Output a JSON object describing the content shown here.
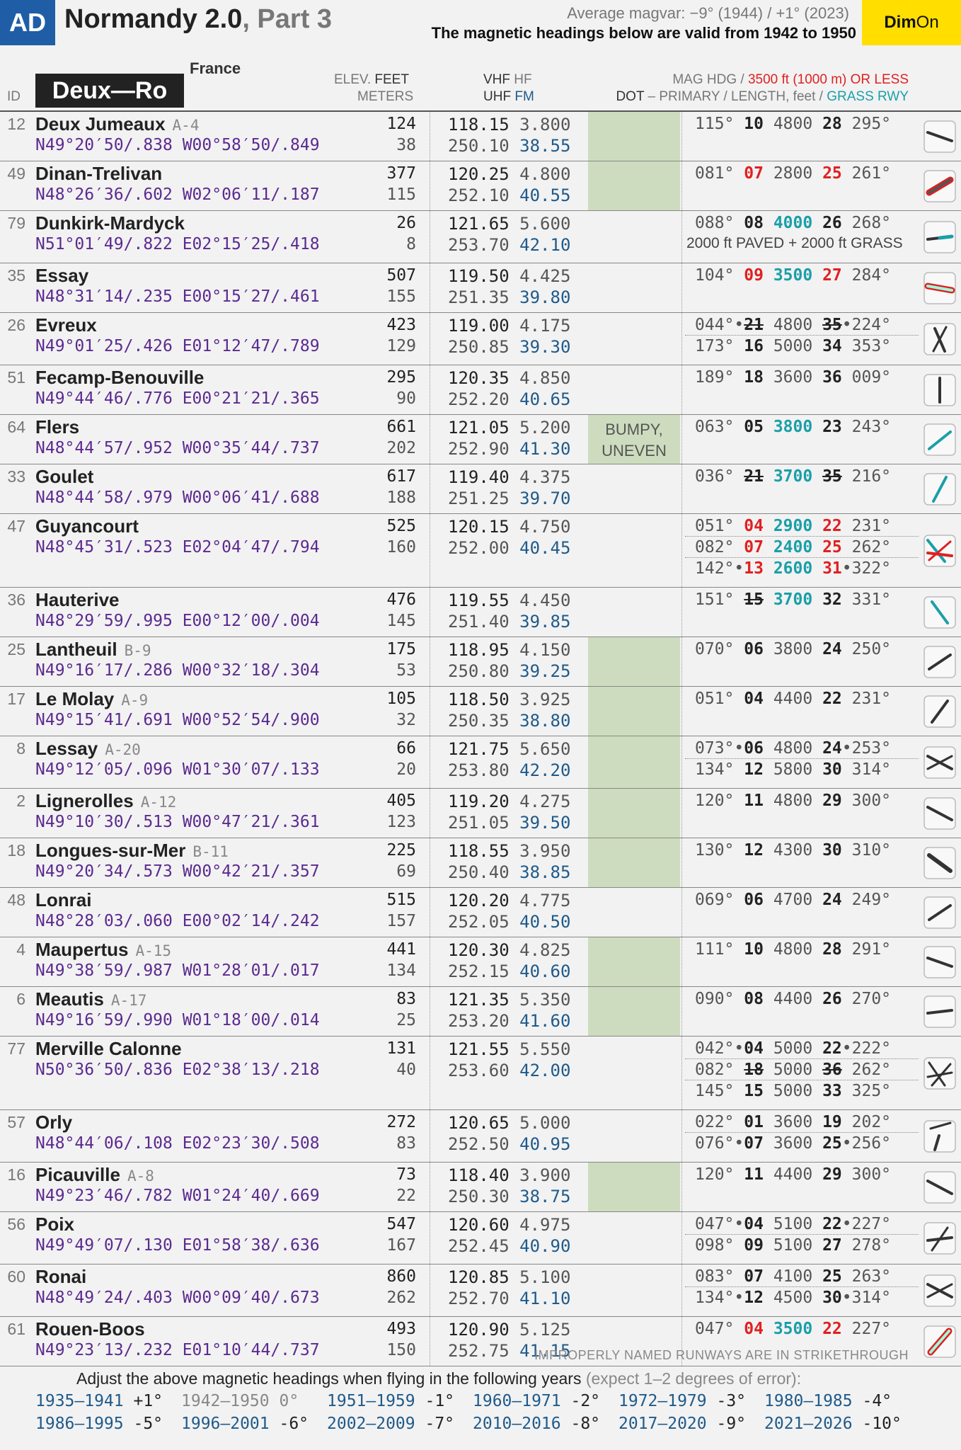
{
  "header": {
    "badge": "AD",
    "title": "Normandy 2.0",
    "part": ", Part 3",
    "magvar": "Average magvar: −9° (1944) / +1° (2023)",
    "validity": "The magnetic headings below are valid from 1942 to 1950",
    "dim_a": "Dim",
    "dim_b": "On"
  },
  "columns": {
    "id": "ID",
    "country": "France",
    "range": "Deux—Ro",
    "elev": "ELEV.",
    "feet": "FEET",
    "meters": "METERS",
    "vhf": "VHF",
    "hf": "HF",
    "uhf": "UHF",
    "fm": "FM",
    "mag1": "MAG HDG /",
    "mag2": "3500 ft (1000 m) OR LESS",
    "dot": "DOT",
    "dot2": " – PRIMARY / LENGTH, feet /",
    "grass": "GRASS RWY"
  },
  "rows": [
    {
      "id": "12",
      "name": "Deux Jumeaux",
      "code": "A-4",
      "coord": "N49°20′50/.838 W00°58′50/.849",
      "elev_ft": "124",
      "elev_m": "38",
      "vhf": "118.15",
      "hf": "3.800",
      "uhf": "250.10",
      "fm": "38.55",
      "green": true,
      "note": "",
      "rwys": [
        [
          "115°",
          [
            "10",
            "n"
          ],
          [
            "4800",
            ""
          ],
          [
            "28",
            "n"
          ],
          "295°"
        ]
      ],
      "extra": "",
      "icon": "dash"
    },
    {
      "id": "49",
      "name": "Dinan-Trelivan",
      "code": "",
      "coord": "N48°26′36/.602 W02°06′11/.187",
      "elev_ft": "377",
      "elev_m": "115",
      "vhf": "120.25",
      "hf": "4.800",
      "uhf": "252.10",
      "fm": "40.55",
      "green": true,
      "note": "",
      "rwys": [
        [
          "081°",
          [
            "07",
            "red"
          ],
          [
            "2800",
            ""
          ],
          [
            "25",
            "red"
          ],
          "261°"
        ]
      ],
      "extra": "",
      "icon": "redpill"
    },
    {
      "id": "79",
      "name": "Dunkirk-Mardyck",
      "code": "",
      "coord": "N51°01′49/.822 E02°15′25/.418",
      "elev_ft": "26",
      "elev_m": "8",
      "vhf": "121.65",
      "hf": "5.600",
      "uhf": "253.70",
      "fm": "42.10",
      "green": false,
      "note": "",
      "rwys": [
        [
          "088°",
          [
            "08",
            "n"
          ],
          [
            "4000",
            "cyan"
          ],
          [
            "26",
            "n"
          ],
          "268°"
        ]
      ],
      "extra": "2000 ft PAVED + 2000 ft GRASS",
      "icon": "dashcyan"
    },
    {
      "id": "35",
      "name": "Essay",
      "code": "",
      "coord": "N48°31′14/.235 E00°15′27/.461",
      "elev_ft": "507",
      "elev_m": "155",
      "vhf": "119.50",
      "hf": "4.425",
      "uhf": "251.35",
      "fm": "39.80",
      "green": false,
      "note": "",
      "rwys": [
        [
          "104°",
          [
            "09",
            "red"
          ],
          [
            "3500",
            "cyan"
          ],
          [
            "27",
            "red"
          ],
          "284°"
        ]
      ],
      "extra": "",
      "icon": "pinkpill"
    },
    {
      "id": "26",
      "name": "Evreux",
      "code": "",
      "coord": "N49°01′25/.426 E01°12′47/.789",
      "elev_ft": "423",
      "elev_m": "129",
      "vhf": "119.00",
      "hf": "4.175",
      "uhf": "250.85",
      "fm": "39.30",
      "green": false,
      "note": "",
      "rwys": [
        [
          "044°•",
          [
            "21",
            "strike"
          ],
          [
            "4800",
            ""
          ],
          [
            "35",
            "strike"
          ],
          "•224°"
        ],
        [
          "173°",
          [
            "16",
            "n"
          ],
          [
            "5000",
            ""
          ],
          [
            "34",
            "n"
          ],
          "353°"
        ]
      ],
      "extra": "",
      "icon": "cross1"
    },
    {
      "id": "51",
      "name": "Fecamp-Benouville",
      "code": "",
      "coord": "N49°44′46/.776 E00°21′21/.365",
      "elev_ft": "295",
      "elev_m": "90",
      "vhf": "120.35",
      "hf": "4.850",
      "uhf": "252.20",
      "fm": "40.65",
      "green": false,
      "note": "",
      "rwys": [
        [
          "189°",
          [
            "18",
            "n"
          ],
          [
            "3600",
            ""
          ],
          [
            "36",
            "n"
          ],
          "009°"
        ]
      ],
      "extra": "",
      "icon": "vert"
    },
    {
      "id": "64",
      "name": "Flers",
      "code": "",
      "coord": "N48°44′57/.952 W00°35′44/.737",
      "elev_ft": "661",
      "elev_m": "202",
      "vhf": "121.05",
      "hf": "5.200",
      "uhf": "252.90",
      "fm": "41.30",
      "green": true,
      "note": "BUMPY, UNEVEN",
      "rwys": [
        [
          "063°",
          [
            "05",
            "n"
          ],
          [
            "3800",
            "cyan"
          ],
          [
            "23",
            "n"
          ],
          "243°"
        ]
      ],
      "extra": "",
      "icon": "cyan60"
    },
    {
      "id": "33",
      "name": "Goulet",
      "code": "",
      "coord": "N48°44′58/.979 W00°06′41/.688",
      "elev_ft": "617",
      "elev_m": "188",
      "vhf": "119.40",
      "hf": "4.375",
      "uhf": "251.25",
      "fm": "39.70",
      "green": false,
      "note": "",
      "rwys": [
        [
          "036°",
          [
            "21",
            "strike"
          ],
          [
            "3700",
            "cyan"
          ],
          [
            "35",
            "strike"
          ],
          "216°"
        ]
      ],
      "extra": "",
      "icon": "cyan30"
    },
    {
      "id": "47",
      "name": "Guyancourt",
      "code": "",
      "coord": "N48°45′31/.523 E02°04′47/.794",
      "elev_ft": "525",
      "elev_m": "160",
      "vhf": "120.15",
      "hf": "4.750",
      "uhf": "252.00",
      "fm": "40.45",
      "green": false,
      "note": "",
      "rwys": [
        [
          "051°",
          [
            "04",
            "red"
          ],
          [
            "2900",
            "cyan"
          ],
          [
            "22",
            "red"
          ],
          "231°"
        ],
        [
          "082°",
          [
            "07",
            "red"
          ],
          [
            "2400",
            "cyan"
          ],
          [
            "25",
            "red"
          ],
          "262°"
        ],
        [
          "142°•",
          [
            "13",
            "red"
          ],
          [
            "2600",
            "cyan"
          ],
          [
            "31",
            "red"
          ],
          "•322°"
        ]
      ],
      "extra": "",
      "icon": "tri"
    },
    {
      "id": "36",
      "name": "Hauterive",
      "code": "",
      "coord": "N48°29′59/.995 E00°12′00/.004",
      "elev_ft": "476",
      "elev_m": "145",
      "vhf": "119.55",
      "hf": "4.450",
      "uhf": "251.40",
      "fm": "39.85",
      "green": false,
      "note": "",
      "rwys": [
        [
          "151°",
          [
            "15",
            "strike"
          ],
          [
            "3700",
            "cyan"
          ],
          [
            "32",
            "n"
          ],
          "331°"
        ]
      ],
      "extra": "",
      "icon": "cyan150"
    },
    {
      "id": "25",
      "name": "Lantheuil",
      "code": "B-9",
      "coord": "N49°16′17/.286 W00°32′18/.304",
      "elev_ft": "175",
      "elev_m": "53",
      "vhf": "118.95",
      "hf": "4.150",
      "uhf": "250.80",
      "fm": "39.25",
      "green": true,
      "note": "",
      "rwys": [
        [
          "070°",
          [
            "06",
            "n"
          ],
          [
            "3800",
            ""
          ],
          [
            "24",
            "n"
          ],
          "250°"
        ]
      ],
      "extra": "",
      "icon": "d70"
    },
    {
      "id": "17",
      "name": "Le Molay",
      "code": "A-9",
      "coord": "N49°15′41/.691 W00°52′54/.900",
      "elev_ft": "105",
      "elev_m": "32",
      "vhf": "118.50",
      "hf": "3.925",
      "uhf": "250.35",
      "fm": "38.80",
      "green": true,
      "note": "",
      "rwys": [
        [
          "051°",
          [
            "04",
            "n"
          ],
          [
            "4400",
            ""
          ],
          [
            "22",
            "n"
          ],
          "231°"
        ]
      ],
      "extra": "",
      "icon": "d50"
    },
    {
      "id": "8",
      "name": "Lessay",
      "code": "A-20",
      "coord": "N49°12′05/.096 W01°30′07/.133",
      "elev_ft": "66",
      "elev_m": "20",
      "vhf": "121.75",
      "hf": "5.650",
      "uhf": "253.80",
      "fm": "42.20",
      "green": true,
      "note": "",
      "rwys": [
        [
          "073°•",
          [
            "06",
            "n"
          ],
          [
            "4800",
            ""
          ],
          [
            "24",
            "n"
          ],
          "•253°"
        ],
        [
          "134°",
          [
            "12",
            "n"
          ],
          [
            "5800",
            ""
          ],
          [
            "30",
            "n"
          ],
          "314°"
        ]
      ],
      "extra": "",
      "icon": "x"
    },
    {
      "id": "2",
      "name": "Lignerolles",
      "code": "A-12",
      "coord": "N49°10′30/.513 W00°47′21/.361",
      "elev_ft": "405",
      "elev_m": "123",
      "vhf": "119.20",
      "hf": "4.275",
      "uhf": "251.05",
      "fm": "39.50",
      "green": true,
      "note": "",
      "rwys": [
        [
          "120°",
          [
            "11",
            "n"
          ],
          [
            "4800",
            ""
          ],
          [
            "29",
            "n"
          ],
          "300°"
        ]
      ],
      "extra": "",
      "icon": "d120"
    },
    {
      "id": "18",
      "name": "Longues-sur-Mer",
      "code": "B-11",
      "coord": "N49°20′34/.573 W00°42′21/.357",
      "elev_ft": "225",
      "elev_m": "69",
      "vhf": "118.55",
      "hf": "3.950",
      "uhf": "250.40",
      "fm": "38.85",
      "green": true,
      "note": "",
      "rwys": [
        [
          "130°",
          [
            "12",
            "n"
          ],
          [
            "4300",
            ""
          ],
          [
            "30",
            "n"
          ],
          "310°"
        ]
      ],
      "extra": "",
      "icon": "d130"
    },
    {
      "id": "48",
      "name": "Lonrai",
      "code": "",
      "coord": "N48°28′03/.060 E00°02′14/.242",
      "elev_ft": "515",
      "elev_m": "157",
      "vhf": "120.20",
      "hf": "4.775",
      "uhf": "252.05",
      "fm": "40.50",
      "green": false,
      "note": "",
      "rwys": [
        [
          "069°",
          [
            "06",
            "n"
          ],
          [
            "4700",
            ""
          ],
          [
            "24",
            "n"
          ],
          "249°"
        ]
      ],
      "extra": "",
      "icon": "d70"
    },
    {
      "id": "4",
      "name": "Maupertus",
      "code": "A-15",
      "coord": "N49°38′59/.987 W01°28′01/.017",
      "elev_ft": "441",
      "elev_m": "134",
      "vhf": "120.30",
      "hf": "4.825",
      "uhf": "252.15",
      "fm": "40.60",
      "green": true,
      "note": "",
      "rwys": [
        [
          "111°",
          [
            "10",
            "n"
          ],
          [
            "4800",
            ""
          ],
          [
            "28",
            "n"
          ],
          "291°"
        ]
      ],
      "extra": "",
      "icon": "dash"
    },
    {
      "id": "6",
      "name": "Meautis",
      "code": "A-17",
      "coord": "N49°16′59/.990 W01°18′00/.014",
      "elev_ft": "83",
      "elev_m": "25",
      "vhf": "121.35",
      "hf": "5.350",
      "uhf": "253.20",
      "fm": "41.60",
      "green": true,
      "note": "",
      "rwys": [
        [
          "090°",
          [
            "08",
            "n"
          ],
          [
            "4400",
            ""
          ],
          [
            "26",
            "n"
          ],
          "270°"
        ]
      ],
      "extra": "",
      "icon": "d90"
    },
    {
      "id": "77",
      "name": "Merville Calonne",
      "code": "",
      "coord": "N50°36′50/.836 E02°38′13/.218",
      "elev_ft": "131",
      "elev_m": "40",
      "vhf": "121.55",
      "hf": "5.550",
      "uhf": "253.60",
      "fm": "42.00",
      "green": false,
      "note": "",
      "rwys": [
        [
          "042°•",
          [
            "04",
            "n"
          ],
          [
            "5000",
            ""
          ],
          [
            "22",
            "n"
          ],
          "•222°"
        ],
        [
          "082°",
          [
            "18",
            "strike"
          ],
          [
            "5000",
            ""
          ],
          [
            "36",
            "strike"
          ],
          "262°"
        ],
        [
          "145°",
          [
            "15",
            "n"
          ],
          [
            "5000",
            ""
          ],
          [
            "33",
            "n"
          ],
          "325°"
        ]
      ],
      "extra": "",
      "icon": "tri2"
    },
    {
      "id": "57",
      "name": "Orly",
      "code": "",
      "coord": "N48°44′06/.108 E02°23′30/.508",
      "elev_ft": "272",
      "elev_m": "83",
      "vhf": "120.65",
      "hf": "5.000",
      "uhf": "252.50",
      "fm": "40.95",
      "green": false,
      "note": "",
      "rwys": [
        [
          "022°",
          [
            "01",
            "n"
          ],
          [
            "3600",
            ""
          ],
          [
            "19",
            "n"
          ],
          "202°"
        ],
        [
          "076°•",
          [
            "07",
            "n"
          ],
          [
            "3600",
            ""
          ],
          [
            "25",
            "n"
          ],
          "•256°"
        ]
      ],
      "extra": "",
      "icon": "orly"
    },
    {
      "id": "16",
      "name": "Picauville",
      "code": "A-8",
      "coord": "N49°23′46/.782 W01°24′40/.669",
      "elev_ft": "73",
      "elev_m": "22",
      "vhf": "118.40",
      "hf": "3.900",
      "uhf": "250.30",
      "fm": "38.75",
      "green": true,
      "note": "",
      "rwys": [
        [
          "120°",
          [
            "11",
            "n"
          ],
          [
            "4400",
            ""
          ],
          [
            "29",
            "n"
          ],
          "300°"
        ]
      ],
      "extra": "",
      "icon": "d120"
    },
    {
      "id": "56",
      "name": "Poix",
      "code": "",
      "coord": "N49°49′07/.130 E01°58′38/.636",
      "elev_ft": "547",
      "elev_m": "167",
      "vhf": "120.60",
      "hf": "4.975",
      "uhf": "252.45",
      "fm": "40.90",
      "green": false,
      "note": "",
      "rwys": [
        [
          "047°•",
          [
            "04",
            "n"
          ],
          [
            "5100",
            ""
          ],
          [
            "22",
            "n"
          ],
          "•227°"
        ],
        [
          "098°",
          [
            "09",
            "n"
          ],
          [
            "5100",
            ""
          ],
          [
            "27",
            "n"
          ],
          "278°"
        ]
      ],
      "extra": "",
      "icon": "poix"
    },
    {
      "id": "60",
      "name": "Ronai",
      "code": "",
      "coord": "N48°49′24/.403 W00°09′40/.673",
      "elev_ft": "860",
      "elev_m": "262",
      "vhf": "120.85",
      "hf": "5.100",
      "uhf": "252.70",
      "fm": "41.10",
      "green": false,
      "note": "",
      "rwys": [
        [
          "083°",
          [
            "07",
            "n"
          ],
          [
            "4100",
            ""
          ],
          [
            "25",
            "n"
          ],
          "263°"
        ],
        [
          "134°•",
          [
            "12",
            "n"
          ],
          [
            "4500",
            ""
          ],
          [
            "30",
            "n"
          ],
          "•314°"
        ]
      ],
      "extra": "",
      "icon": "x"
    },
    {
      "id": "61",
      "name": "Rouen-Boos",
      "code": "",
      "coord": "N49°23′13/.232 E01°10′44/.737",
      "elev_ft": "493",
      "elev_m": "150",
      "vhf": "120.90",
      "hf": "5.125",
      "uhf": "252.75",
      "fm": "41.15",
      "green": false,
      "note": "",
      "rwys": [
        [
          "047°",
          [
            "04",
            "red"
          ],
          [
            "3500",
            "cyan"
          ],
          [
            "22",
            "red"
          ],
          "227°"
        ]
      ],
      "extra": "",
      "icon": "redpill45"
    }
  ],
  "footer": {
    "strike": "IMPROPERLY NAMED RUNWAYS ARE IN STRIKETHROUGH",
    "adjust": "Adjust the above magnetic headings when flying in the following years",
    "adjust_note": " (expect 1–2 degrees of error):",
    "years": [
      [
        "1935–1941",
        "+1°"
      ],
      [
        "1942–1950",
        "0°"
      ],
      [
        "1951–1959",
        "-1°"
      ],
      [
        "1960–1971",
        "-2°"
      ],
      [
        "1972–1979",
        "-3°"
      ],
      [
        "1980–1985",
        "-4°"
      ],
      [
        "1986–1995",
        "-5°"
      ],
      [
        "1996–2001",
        "-6°"
      ],
      [
        "2002–2009",
        "-7°"
      ],
      [
        "2010–2016",
        "-8°"
      ],
      [
        "2017–2020",
        "-9°"
      ],
      [
        "2021–2026",
        "-10°"
      ]
    ]
  }
}
